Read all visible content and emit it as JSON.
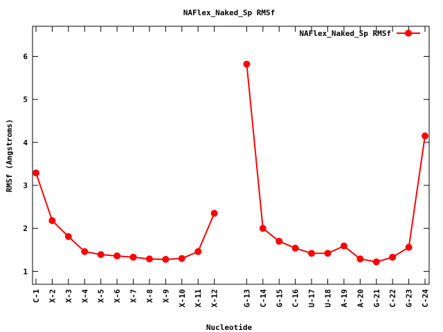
{
  "chart_data": {
    "type": "line",
    "title": "NAFlex_Naked_Sp RMSf",
    "xlabel": "Nucleotide",
    "ylabel": "RMSf (Angstroms)",
    "ylim": [
      0.7,
      6.7
    ],
    "yticks": [
      1,
      2,
      3,
      4,
      5,
      6
    ],
    "grid": false,
    "legend_position": "top-right",
    "categories": [
      "C-1",
      "X-2",
      "X-3",
      "X-4",
      "X-5",
      "X-6",
      "X-7",
      "X-8",
      "X-9",
      "X-10",
      "X-11",
      "X-12",
      "G-13",
      "C-14",
      "G-15",
      "C-16",
      "U-17",
      "U-18",
      "A-19",
      "A-20",
      "G-21",
      "C-22",
      "G-23",
      "C-24"
    ],
    "x_positions": [
      1,
      2,
      3,
      4,
      5,
      6,
      7,
      8,
      9,
      10,
      11,
      12,
      14,
      15,
      16,
      17,
      18,
      19,
      20,
      21,
      22,
      23,
      24,
      25
    ],
    "xlim": [
      1,
      25
    ],
    "series": [
      {
        "name": "NAFlex_Naked_Sp RMSf",
        "color": "#ff0000",
        "segments": [
          [
            3.29,
            2.18,
            1.81,
            1.46,
            1.39,
            1.36,
            1.33,
            1.29,
            1.28,
            1.3,
            1.46,
            2.35
          ],
          [
            5.82,
            2.0,
            1.7,
            1.54,
            1.42,
            1.42,
            1.59,
            1.29,
            1.22,
            1.33,
            1.56,
            4.15
          ]
        ],
        "values": [
          3.29,
          2.18,
          1.81,
          1.46,
          1.39,
          1.36,
          1.33,
          1.29,
          1.28,
          1.3,
          1.46,
          2.35,
          5.82,
          2.0,
          1.7,
          1.54,
          1.42,
          1.42,
          1.59,
          1.29,
          1.22,
          1.33,
          1.56,
          4.15
        ]
      }
    ]
  }
}
